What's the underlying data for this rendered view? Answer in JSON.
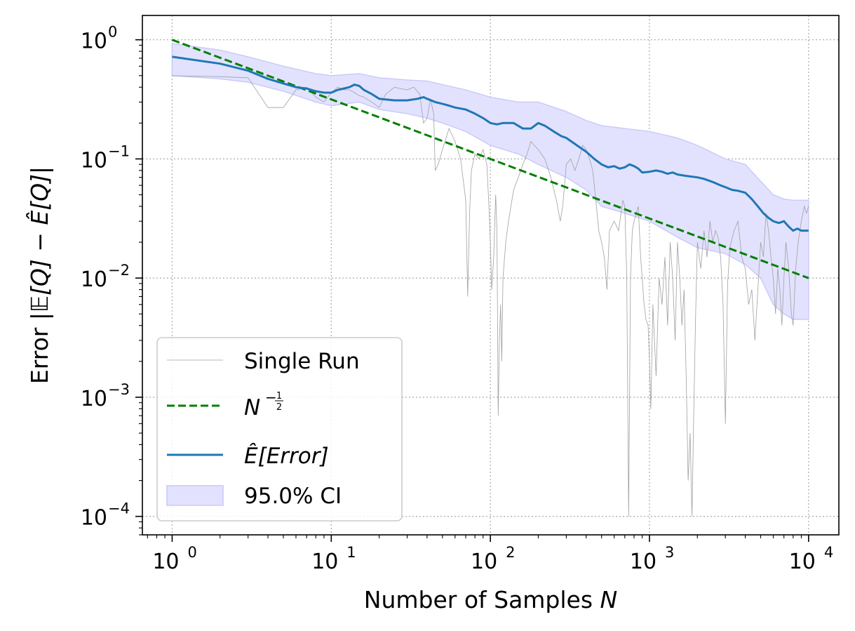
{
  "chart_data": {
    "type": "line",
    "xscale": "log",
    "yscale": "log",
    "xlim": [
      0.65,
      15500
    ],
    "ylim": [
      7e-05,
      1.6
    ],
    "grid": true,
    "legend_position": "lower-left",
    "xlabel": {
      "text": "Number of Samples ",
      "var": "N"
    },
    "ylabel": {
      "text": "Error |",
      "math": "𝔼[Q] − Ê[Q]",
      "suffix": "|"
    },
    "x_ticks": [
      {
        "value": 1,
        "base": "10",
        "exp": "0"
      },
      {
        "value": 10,
        "base": "10",
        "exp": "1"
      },
      {
        "value": 100,
        "base": "10",
        "exp": "2"
      },
      {
        "value": 1000,
        "base": "10",
        "exp": "3"
      },
      {
        "value": 10000,
        "base": "10",
        "exp": "4"
      }
    ],
    "y_ticks": [
      {
        "value": 1,
        "base": "10",
        "exp": "0"
      },
      {
        "value": 0.1,
        "base": "10",
        "exp": "−1"
      },
      {
        "value": 0.01,
        "base": "10",
        "exp": "−2"
      },
      {
        "value": 0.001,
        "base": "10",
        "exp": "−3"
      },
      {
        "value": 0.0001,
        "base": "10",
        "exp": "−4"
      }
    ],
    "colors": {
      "single_run": "#a0a0a0",
      "reference": "#008000",
      "mean": "#1f77b4",
      "ci_fill": "#e2e2ff",
      "ci_edge": "#c8c8fa",
      "grid": "#b0b0b0"
    },
    "legend": [
      {
        "key": "single_run",
        "label": "Single Run"
      },
      {
        "key": "reference",
        "label_base": "N",
        "label_exp_num": "1",
        "label_exp_den": "2"
      },
      {
        "key": "mean",
        "label_hat": "Ê",
        "label_rest": "[Error]"
      },
      {
        "key": "ci",
        "label": "95.0% CI"
      }
    ],
    "series": [
      {
        "name": "Single Run",
        "style": "thin-grey",
        "points": [
          [
            1,
            0.5
          ],
          [
            2,
            0.49
          ],
          [
            3,
            0.48
          ],
          [
            4,
            0.27
          ],
          [
            5,
            0.27
          ],
          [
            6,
            0.38
          ],
          [
            7,
            0.4
          ],
          [
            8,
            0.33
          ],
          [
            9,
            0.3
          ],
          [
            10,
            0.36
          ],
          [
            11,
            0.4
          ],
          [
            12,
            0.38
          ],
          [
            13,
            0.38
          ],
          [
            14,
            0.36
          ],
          [
            15,
            0.34
          ],
          [
            16,
            0.33
          ],
          [
            18,
            0.3
          ],
          [
            20,
            0.27
          ],
          [
            22,
            0.35
          ],
          [
            25,
            0.4
          ],
          [
            27,
            0.39
          ],
          [
            30,
            0.38
          ],
          [
            33,
            0.4
          ],
          [
            36,
            0.35
          ],
          [
            38,
            0.2
          ],
          [
            40,
            0.22
          ],
          [
            42,
            0.32
          ],
          [
            44,
            0.24
          ],
          [
            45,
            0.08
          ],
          [
            47,
            0.09
          ],
          [
            50,
            0.12
          ],
          [
            55,
            0.18
          ],
          [
            60,
            0.14
          ],
          [
            65,
            0.1
          ],
          [
            70,
            0.045
          ],
          [
            72,
            0.007
          ],
          [
            74,
            0.035
          ],
          [
            76,
            0.08
          ],
          [
            80,
            0.11
          ],
          [
            85,
            0.1
          ],
          [
            90,
            0.12
          ],
          [
            95,
            0.09
          ],
          [
            98,
            0.04
          ],
          [
            100,
            0.02
          ],
          [
            102,
            0.008
          ],
          [
            105,
            0.015
          ],
          [
            108,
            0.05
          ],
          [
            110,
            0.025
          ],
          [
            112,
            0.0007
          ],
          [
            114,
            0.003
          ],
          [
            116,
            0.006
          ],
          [
            118,
            0.002
          ],
          [
            120,
            0.01
          ],
          [
            125,
            0.02
          ],
          [
            130,
            0.03
          ],
          [
            140,
            0.055
          ],
          [
            150,
            0.07
          ],
          [
            160,
            0.09
          ],
          [
            170,
            0.11
          ],
          [
            180,
            0.14
          ],
          [
            200,
            0.12
          ],
          [
            220,
            0.1
          ],
          [
            240,
            0.07
          ],
          [
            260,
            0.045
          ],
          [
            275,
            0.03
          ],
          [
            285,
            0.04
          ],
          [
            300,
            0.09
          ],
          [
            320,
            0.1
          ],
          [
            340,
            0.08
          ],
          [
            360,
            0.1
          ],
          [
            380,
            0.13
          ],
          [
            400,
            0.12
          ],
          [
            420,
            0.1
          ],
          [
            440,
            0.08
          ],
          [
            460,
            0.045
          ],
          [
            480,
            0.025
          ],
          [
            500,
            0.02
          ],
          [
            520,
            0.015
          ],
          [
            540,
            0.008
          ],
          [
            560,
            0.025
          ],
          [
            600,
            0.03
          ],
          [
            640,
            0.025
          ],
          [
            680,
            0.045
          ],
          [
            700,
            0.04
          ],
          [
            720,
            0.01
          ],
          [
            740,
            0.0001
          ],
          [
            760,
            0.01
          ],
          [
            780,
            0.025
          ],
          [
            800,
            0.03
          ],
          [
            850,
            0.04
          ],
          [
            880,
            0.015
          ],
          [
            900,
            0.01
          ],
          [
            920,
            0.0065
          ],
          [
            950,
            0.0045
          ],
          [
            980,
            0.004
          ],
          [
            1000,
            0.002
          ],
          [
            1020,
            0.0008
          ],
          [
            1050,
            0.006
          ],
          [
            1100,
            0.0015
          ],
          [
            1150,
            0.01
          ],
          [
            1200,
            0.006
          ],
          [
            1250,
            0.015
          ],
          [
            1300,
            0.004
          ],
          [
            1350,
            0.02
          ],
          [
            1400,
            0.01
          ],
          [
            1450,
            0.003
          ],
          [
            1500,
            0.02
          ],
          [
            1550,
            0.01
          ],
          [
            1600,
            0.004
          ],
          [
            1650,
            0.008
          ],
          [
            1700,
            0.0015
          ],
          [
            1750,
            0.0002
          ],
          [
            1800,
            0.0005
          ],
          [
            1850,
            0.0001
          ],
          [
            1900,
            0.0008
          ],
          [
            1950,
            0.005
          ],
          [
            2000,
            0.02
          ],
          [
            2100,
            0.012
          ],
          [
            2200,
            0.025
          ],
          [
            2300,
            0.015
          ],
          [
            2400,
            0.03
          ],
          [
            2500,
            0.02
          ],
          [
            2600,
            0.025
          ],
          [
            2700,
            0.022
          ],
          [
            2800,
            0.015
          ],
          [
            2900,
            0.006
          ],
          [
            3000,
            0.0006
          ],
          [
            3100,
            0.009
          ],
          [
            3200,
            0.018
          ],
          [
            3400,
            0.025
          ],
          [
            3600,
            0.03
          ],
          [
            3800,
            0.015
          ],
          [
            4000,
            0.012
          ],
          [
            4200,
            0.006
          ],
          [
            4400,
            0.008
          ],
          [
            4600,
            0.003
          ],
          [
            4800,
            0.008
          ],
          [
            5000,
            0.02
          ],
          [
            5200,
            0.015
          ],
          [
            5400,
            0.035
          ],
          [
            5600,
            0.025
          ],
          [
            5800,
            0.015
          ],
          [
            6000,
            0.01
          ],
          [
            6200,
            0.005
          ],
          [
            6400,
            0.012
          ],
          [
            6600,
            0.008
          ],
          [
            6800,
            0.004
          ],
          [
            7000,
            0.01
          ],
          [
            7200,
            0.02
          ],
          [
            7500,
            0.012
          ],
          [
            7800,
            0.005
          ],
          [
            8000,
            0.004
          ],
          [
            8300,
            0.012
          ],
          [
            8600,
            0.02
          ],
          [
            9000,
            0.03
          ],
          [
            9400,
            0.04
          ],
          [
            9700,
            0.035
          ],
          [
            10000,
            0.04
          ]
        ]
      },
      {
        "name": "N^(-1/2)",
        "style": "dashed",
        "points": [
          [
            1,
            1
          ],
          [
            10000,
            0.01
          ]
        ]
      },
      {
        "name": "Ê[Error]",
        "style": "solid",
        "points": [
          [
            1,
            0.72
          ],
          [
            2,
            0.63
          ],
          [
            3,
            0.55
          ],
          [
            4,
            0.47
          ],
          [
            5,
            0.43
          ],
          [
            6,
            0.4
          ],
          [
            7,
            0.39
          ],
          [
            8,
            0.37
          ],
          [
            9,
            0.36
          ],
          [
            10,
            0.36
          ],
          [
            11,
            0.38
          ],
          [
            12,
            0.39
          ],
          [
            13,
            0.4
          ],
          [
            14,
            0.42
          ],
          [
            15,
            0.41
          ],
          [
            16,
            0.38
          ],
          [
            18,
            0.35
          ],
          [
            20,
            0.32
          ],
          [
            25,
            0.31
          ],
          [
            30,
            0.31
          ],
          [
            35,
            0.32
          ],
          [
            38,
            0.33
          ],
          [
            40,
            0.32
          ],
          [
            45,
            0.3
          ],
          [
            50,
            0.29
          ],
          [
            55,
            0.28
          ],
          [
            60,
            0.27
          ],
          [
            70,
            0.26
          ],
          [
            80,
            0.24
          ],
          [
            90,
            0.22
          ],
          [
            100,
            0.2
          ],
          [
            110,
            0.195
          ],
          [
            120,
            0.2
          ],
          [
            140,
            0.2
          ],
          [
            160,
            0.18
          ],
          [
            180,
            0.18
          ],
          [
            200,
            0.2
          ],
          [
            220,
            0.19
          ],
          [
            250,
            0.17
          ],
          [
            280,
            0.155
          ],
          [
            300,
            0.15
          ],
          [
            350,
            0.13
          ],
          [
            400,
            0.115
          ],
          [
            450,
            0.1
          ],
          [
            500,
            0.09
          ],
          [
            550,
            0.085
          ],
          [
            600,
            0.087
          ],
          [
            650,
            0.083
          ],
          [
            700,
            0.085
          ],
          [
            750,
            0.09
          ],
          [
            800,
            0.087
          ],
          [
            850,
            0.083
          ],
          [
            900,
            0.077
          ],
          [
            1000,
            0.078
          ],
          [
            1100,
            0.08
          ],
          [
            1200,
            0.078
          ],
          [
            1300,
            0.075
          ],
          [
            1400,
            0.077
          ],
          [
            1500,
            0.074
          ],
          [
            1700,
            0.072
          ],
          [
            2000,
            0.07
          ],
          [
            2200,
            0.068
          ],
          [
            2500,
            0.064
          ],
          [
            2800,
            0.06
          ],
          [
            3000,
            0.058
          ],
          [
            3300,
            0.055
          ],
          [
            3600,
            0.054
          ],
          [
            4000,
            0.052
          ],
          [
            4400,
            0.046
          ],
          [
            4800,
            0.04
          ],
          [
            5200,
            0.035
          ],
          [
            5600,
            0.032
          ],
          [
            6000,
            0.03
          ],
          [
            6500,
            0.029
          ],
          [
            7000,
            0.03
          ],
          [
            7500,
            0.027
          ],
          [
            8000,
            0.025
          ],
          [
            8500,
            0.026
          ],
          [
            9000,
            0.025
          ],
          [
            10000,
            0.025
          ]
        ]
      },
      {
        "name": "95.0% CI",
        "style": "band",
        "upper": [
          [
            1,
            0.93
          ],
          [
            2,
            0.82
          ],
          [
            3,
            0.72
          ],
          [
            5,
            0.6
          ],
          [
            8,
            0.52
          ],
          [
            10,
            0.5
          ],
          [
            15,
            0.52
          ],
          [
            20,
            0.48
          ],
          [
            30,
            0.46
          ],
          [
            40,
            0.45
          ],
          [
            50,
            0.42
          ],
          [
            70,
            0.38
          ],
          [
            100,
            0.33
          ],
          [
            150,
            0.3
          ],
          [
            200,
            0.3
          ],
          [
            300,
            0.25
          ],
          [
            400,
            0.21
          ],
          [
            500,
            0.19
          ],
          [
            700,
            0.18
          ],
          [
            1000,
            0.17
          ],
          [
            1500,
            0.15
          ],
          [
            2000,
            0.13
          ],
          [
            3000,
            0.1
          ],
          [
            4000,
            0.09
          ],
          [
            5000,
            0.065
          ],
          [
            6000,
            0.05
          ],
          [
            7000,
            0.046
          ],
          [
            8000,
            0.045
          ],
          [
            10000,
            0.045
          ]
        ],
        "lower": [
          [
            1,
            0.5
          ],
          [
            2,
            0.47
          ],
          [
            3,
            0.44
          ],
          [
            5,
            0.37
          ],
          [
            8,
            0.3
          ],
          [
            10,
            0.28
          ],
          [
            15,
            0.3
          ],
          [
            20,
            0.26
          ],
          [
            30,
            0.24
          ],
          [
            40,
            0.22
          ],
          [
            50,
            0.2
          ],
          [
            70,
            0.17
          ],
          [
            100,
            0.13
          ],
          [
            150,
            0.11
          ],
          [
            200,
            0.09
          ],
          [
            300,
            0.07
          ],
          [
            400,
            0.055
          ],
          [
            500,
            0.04
          ],
          [
            700,
            0.035
          ],
          [
            1000,
            0.03
          ],
          [
            1500,
            0.022
          ],
          [
            2000,
            0.018
          ],
          [
            3000,
            0.016
          ],
          [
            4000,
            0.013
          ],
          [
            5000,
            0.01
          ],
          [
            6000,
            0.006
          ],
          [
            7000,
            0.005
          ],
          [
            8000,
            0.0045
          ],
          [
            10000,
            0.0045
          ]
        ]
      }
    ]
  }
}
